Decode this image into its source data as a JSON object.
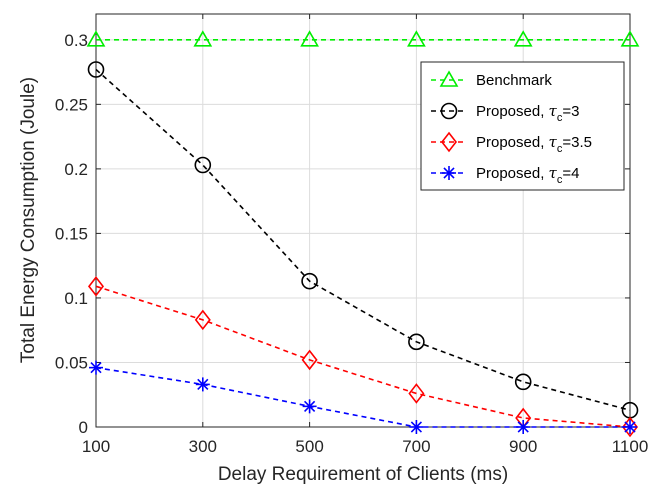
{
  "chart_data": {
    "type": "line",
    "title": "",
    "xlabel": "Delay Requirement of Clients (ms)",
    "ylabel": "Total Energy Consumption (Joule)",
    "x": [
      100,
      300,
      500,
      700,
      900,
      1100
    ],
    "xlim": [
      100,
      1100
    ],
    "ylim": [
      0,
      0.32
    ],
    "xticks": [
      "100",
      "300",
      "500",
      "700",
      "900",
      "1100"
    ],
    "yticks": [
      "0",
      "0.05",
      "0.1",
      "0.15",
      "0.2",
      "0.25",
      "0.3"
    ],
    "yticks_values": [
      0,
      0.05,
      0.1,
      0.15,
      0.2,
      0.25,
      0.3
    ],
    "grid": true,
    "legend_position": "top-right",
    "series": [
      {
        "name": "Benchmark",
        "legend_parts": [
          "Benchmark",
          "",
          ""
        ],
        "color": "#00ee00",
        "marker": "triangle",
        "values": [
          0.3,
          0.3,
          0.3,
          0.3,
          0.3,
          0.3
        ]
      },
      {
        "name": "Proposed, τc=3",
        "legend_parts": [
          "Proposed, ",
          "τ",
          "c",
          "=3"
        ],
        "color": "#000000",
        "marker": "circle",
        "values": [
          0.277,
          0.203,
          0.113,
          0.066,
          0.035,
          0.013
        ]
      },
      {
        "name": "Proposed, τc=3.5",
        "legend_parts": [
          "Proposed, ",
          "τ",
          "c",
          "=3.5"
        ],
        "color": "#ff0000",
        "marker": "diamond",
        "values": [
          0.109,
          0.083,
          0.052,
          0.026,
          0.007,
          0.0
        ]
      },
      {
        "name": "Proposed, τc=4",
        "legend_parts": [
          "Proposed, ",
          "τ",
          "c",
          "=4"
        ],
        "color": "#0000ff",
        "marker": "asterisk",
        "values": [
          0.046,
          0.033,
          0.016,
          0.0,
          0.0,
          0.0
        ]
      }
    ]
  }
}
